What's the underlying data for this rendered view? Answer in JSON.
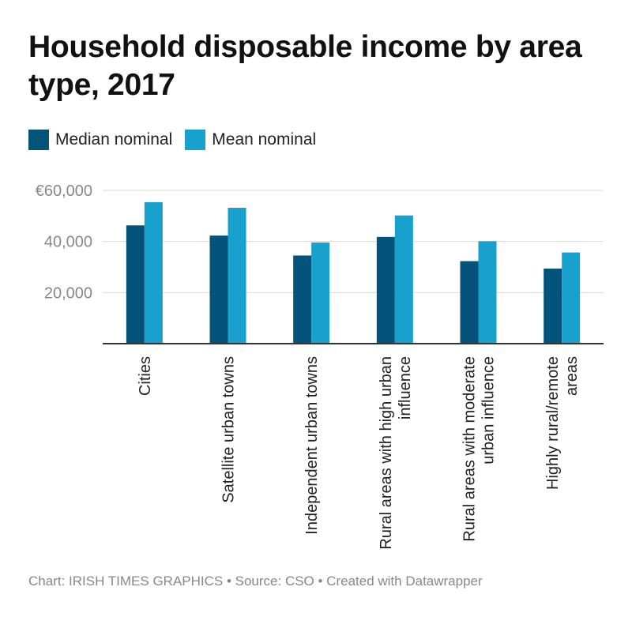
{
  "title": "Household disposable income by area type, 2017",
  "legend": [
    {
      "label": "Median nominal",
      "color": "#04537b"
    },
    {
      "label": "Mean nominal",
      "color": "#18a1cd"
    }
  ],
  "footer": "Chart: IRISH TIMES GRAPHICS • Source: CSO • Created with Datawrapper",
  "chart_data": {
    "type": "bar",
    "title": "Household disposable income by area type, 2017",
    "xlabel": "",
    "ylabel": "",
    "ylim": [
      0,
      60000
    ],
    "yticks": [
      {
        "value": 20000,
        "label": "20,000"
      },
      {
        "value": 40000,
        "label": "40,000"
      },
      {
        "value": 60000,
        "label": "€60,000"
      }
    ],
    "grid": true,
    "legend_position": "top-left",
    "categories": [
      [
        "Cities"
      ],
      [
        "Satellite urban towns"
      ],
      [
        "Independent urban towns"
      ],
      [
        "Rural areas with high urban",
        "influence"
      ],
      [
        "Rural areas with moderate",
        "urban influence"
      ],
      [
        "Highly rural/remote",
        "areas"
      ]
    ],
    "series": [
      {
        "name": "Median nominal",
        "color": "#04537b",
        "values": [
          46300,
          42300,
          34500,
          41800,
          32300,
          29400
        ]
      },
      {
        "name": "Mean nominal",
        "color": "#18a1cd",
        "values": [
          55400,
          53200,
          39600,
          50200,
          40100,
          35700
        ]
      }
    ]
  }
}
